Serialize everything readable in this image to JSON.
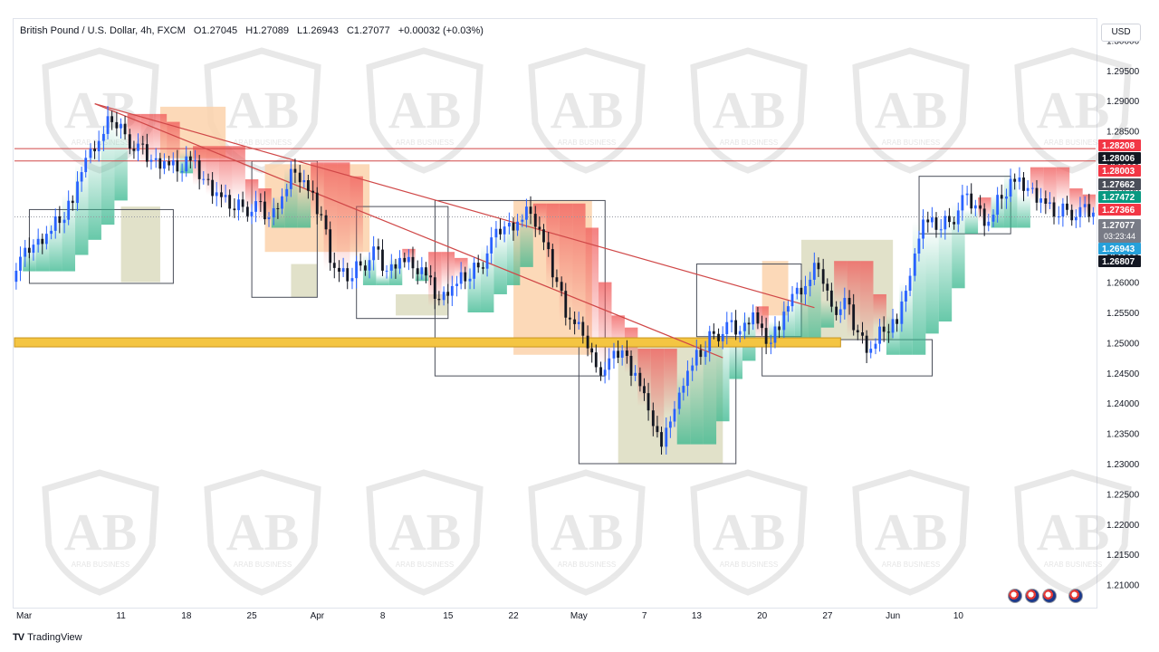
{
  "header": {
    "symbol": "British Pound / U.S. Dollar, 4h, FXCM",
    "open": "O1.27045",
    "high": "H1.27089",
    "low": "L1.26943",
    "close": "C1.27077",
    "change": "+0.00032 (+0.03%)"
  },
  "currency_button": "USD",
  "footer": {
    "brand": "TradingView",
    "logo": "TV"
  },
  "watermark": {
    "text": "ARAB BUSINESS",
    "monogram": "AB"
  },
  "colors": {
    "up": "#2962ff",
    "down": "#131722",
    "trendline": "#d04848",
    "support_zone": "#f4c542",
    "demand_box": "#dcdcbf",
    "supply_box": "#fbd2ac",
    "cloud_bull": "#34b68c",
    "cloud_bear": "#f05757"
  },
  "chart_data": {
    "type": "candlestick",
    "title": "British Pound / U.S. Dollar, 4h, FXCM",
    "ylim": [
      1.2065,
      1.3035
    ],
    "y_ticks": [
      "1.30000",
      "1.29500",
      "1.29000",
      "1.28500",
      "1.28000",
      "1.27500",
      "1.27000",
      "1.26500",
      "1.26000",
      "1.25500",
      "1.25000",
      "1.24500",
      "1.24000",
      "1.23500",
      "1.23000",
      "1.22500",
      "1.22000",
      "1.21500",
      "1.21000"
    ],
    "x_ticks": [
      "Mar",
      "11",
      "18",
      "25",
      "Apr",
      "8",
      "15",
      "22",
      "May",
      "7",
      "13",
      "20",
      "27",
      "Jun",
      "10"
    ],
    "x_tick_index": [
      0,
      8,
      13,
      18,
      23,
      28,
      33,
      38,
      43,
      48,
      52,
      57,
      62,
      67,
      72
    ],
    "closes": [
      1.2628,
      1.2655,
      1.268,
      1.2705,
      1.2745,
      1.2795,
      1.283,
      1.2868,
      1.2855,
      1.2815,
      1.2795,
      1.28,
      1.279,
      1.2815,
      1.276,
      1.2745,
      1.2725,
      1.2735,
      1.272,
      1.27,
      1.2742,
      1.2788,
      1.2765,
      1.27,
      1.262,
      1.2605,
      1.2638,
      1.2645,
      1.2612,
      1.264,
      1.263,
      1.2625,
      1.256,
      1.259,
      1.2605,
      1.2635,
      1.266,
      1.2685,
      1.27,
      1.272,
      1.268,
      1.259,
      1.2535,
      1.2515,
      1.247,
      1.246,
      1.248,
      1.245,
      1.2395,
      1.2342,
      1.238,
      1.245,
      1.248,
      1.2525,
      1.252,
      1.2512,
      1.255,
      1.2505,
      1.2535,
      1.257,
      1.259,
      1.2625,
      1.257,
      1.256,
      1.251,
      1.249,
      1.2525,
      1.2545,
      1.26,
      1.27,
      1.269,
      1.271,
      1.273,
      1.272,
      1.27,
      1.2745,
      1.278,
      1.2745,
      1.2735,
      1.2712,
      1.273,
      1.271,
      1.2708
    ],
    "resistance_lines": [
      1.28208,
      1.28003
    ],
    "support_zone": [
      1.2493,
      1.2508
    ],
    "trendlines": [
      {
        "from": [
          6,
          1.2895
        ],
        "to": [
          61,
          1.2558
        ]
      },
      {
        "from": [
          6,
          1.2895
        ],
        "to": [
          54,
          1.2475
        ]
      }
    ],
    "price_labels": [
      {
        "value": "1.28208",
        "price": 1.28208,
        "color": "#f23645"
      },
      {
        "value": "1.28006",
        "price": 1.28006,
        "color": "#131722"
      },
      {
        "value": "1.28003",
        "price": 1.28003,
        "color": "#f23645"
      },
      {
        "value": "1.27662",
        "price": 1.27662,
        "color": "#4a4e59"
      },
      {
        "value": "1.27472",
        "price": 1.27472,
        "color": "#089981"
      },
      {
        "value": "1.27366",
        "price": 1.27366,
        "color": "#f23645"
      },
      {
        "value": "1.27077",
        "price": 1.27077,
        "color": "#787b86",
        "sub": "03:23:44"
      },
      {
        "value": "1.26943",
        "price": 1.26943,
        "color": "#26a0da"
      },
      {
        "value": "1.26807",
        "price": 1.26807,
        "color": "#131722"
      }
    ]
  }
}
